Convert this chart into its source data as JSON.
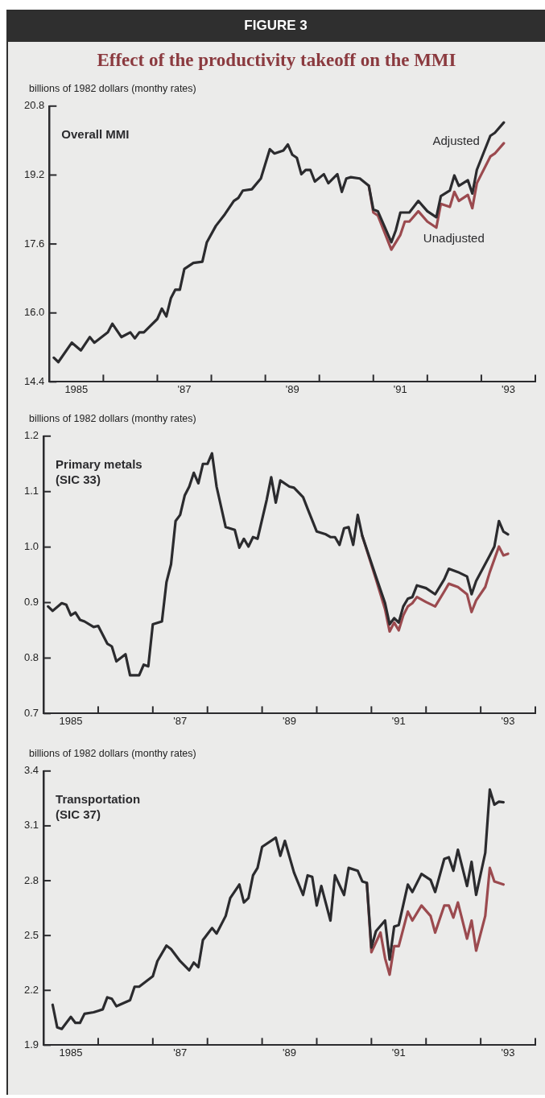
{
  "chart_data": [
    {
      "type": "line",
      "title": "FIGURE 3",
      "subtitle": "Effect of the productivity takeoff on the MMI",
      "ylabel": "billions of 1982 dollars (monthy rates)",
      "annotations": [
        "Overall MMI"
      ],
      "legend": false,
      "grid": false,
      "marker": "none",
      "line_style": "solid",
      "xlim": [
        "1985-01",
        "1994-01"
      ],
      "xticks": [
        {
          "value": "1985-07",
          "label": "1985"
        },
        {
          "value": "1986-01",
          "label": null
        },
        {
          "value": "1987-01",
          "label": null
        },
        {
          "value": "1987-07",
          "label": "'87"
        },
        {
          "value": "1988-01",
          "label": null
        },
        {
          "value": "1989-01",
          "label": null
        },
        {
          "value": "1989-07",
          "label": "'89"
        },
        {
          "value": "1990-01",
          "label": null
        },
        {
          "value": "1991-01",
          "label": null
        },
        {
          "value": "1991-07",
          "label": "'91"
        },
        {
          "value": "1992-01",
          "label": null
        },
        {
          "value": "1993-01",
          "label": null
        },
        {
          "value": "1993-07",
          "label": "'93"
        },
        {
          "value": "1994-01",
          "label": null
        }
      ],
      "ylim": [
        14.4,
        20.8
      ],
      "yticks": [
        14.4,
        {
          "value": 16,
          "label": "16.0"
        },
        17.6,
        19.2,
        20.8
      ],
      "series": [
        {
          "name": "Adjusted",
          "color": "#2b2b2e",
          "x": [
            "1985-02",
            "1985-03",
            "1985-06",
            "1985-08",
            "1985-10",
            "1985-11",
            "1986-02",
            "1986-03",
            "1986-05",
            "1986-07",
            "1986-08",
            "1986-09",
            "1986-10",
            "1987-01",
            "1987-02",
            "1987-03",
            "1987-04",
            "1987-05",
            "1987-06",
            "1987-07",
            "1987-09",
            "1987-11",
            "1987-12",
            "1988-02",
            "1988-04",
            "1988-06",
            "1988-07",
            "1988-08",
            "1988-10",
            "1988-12",
            "1989-02",
            "1989-03",
            "1989-05",
            "1989-06",
            "1989-07",
            "1989-08",
            "1989-09",
            "1989-10",
            "1989-11",
            "1989-12",
            "1990-02",
            "1990-03",
            "1990-05",
            "1990-06",
            "1990-07",
            "1990-08",
            "1990-10",
            "1990-12",
            "1991-01",
            "1991-02",
            "1991-05",
            "1991-06",
            "1991-07",
            "1991-09",
            "1991-11",
            "1992-01",
            "1992-03",
            "1992-04",
            "1992-06",
            "1992-07",
            "1992-08",
            "1992-10",
            "1992-11",
            "1992-12",
            "1993-03",
            "1993-04",
            "1993-06"
          ],
          "values": [
            14.96,
            14.86,
            15.31,
            15.13,
            15.44,
            15.31,
            15.55,
            15.75,
            15.44,
            15.55,
            15.41,
            15.55,
            15.55,
            15.86,
            16.1,
            15.92,
            16.34,
            16.54,
            16.54,
            17.02,
            17.16,
            17.19,
            17.64,
            18.02,
            18.29,
            18.6,
            18.67,
            18.84,
            18.87,
            19.12,
            19.8,
            19.7,
            19.77,
            19.91,
            19.67,
            19.6,
            19.22,
            19.32,
            19.32,
            19.05,
            19.22,
            19.01,
            19.22,
            18.81,
            19.12,
            19.15,
            19.12,
            18.95,
            18.4,
            18.36,
            17.64,
            17.92,
            18.33,
            18.33,
            18.6,
            18.36,
            18.22,
            18.71,
            18.84,
            19.19,
            18.95,
            19.08,
            18.77,
            19.32,
            20.11,
            20.18,
            20.42
          ]
        },
        {
          "name": "Unadjusted",
          "color": "#9b4a4f",
          "x": [
            "1990-12",
            "1991-01",
            "1991-02",
            "1991-05",
            "1991-07",
            "1991-08",
            "1991-09",
            "1991-11",
            "1992-01",
            "1992-03",
            "1992-04",
            "1992-06",
            "1992-07",
            "1992-08",
            "1992-10",
            "1992-11",
            "1992-12",
            "1993-03",
            "1993-04",
            "1993-06"
          ],
          "values": [
            18.95,
            18.33,
            18.26,
            17.47,
            17.81,
            18.12,
            18.12,
            18.36,
            18.12,
            17.98,
            18.53,
            18.46,
            18.81,
            18.6,
            18.74,
            18.43,
            19.01,
            19.63,
            19.7,
            19.94
          ]
        }
      ]
    },
    {
      "type": "line",
      "ylabel": "billions of 1982 dollars (monthy rates)",
      "annotations": [
        "Primary metals\n(SIC 33)"
      ],
      "legend": false,
      "grid": false,
      "marker": "none",
      "line_style": "solid",
      "xlim": [
        "1985-01",
        "1994-01"
      ],
      "xticks": [
        {
          "value": "1985-07",
          "label": "1985"
        },
        {
          "value": "1986-01",
          "label": null
        },
        {
          "value": "1987-01",
          "label": null
        },
        {
          "value": "1987-07",
          "label": "'87"
        },
        {
          "value": "1988-01",
          "label": null
        },
        {
          "value": "1989-01",
          "label": null
        },
        {
          "value": "1989-07",
          "label": "'89"
        },
        {
          "value": "1990-01",
          "label": null
        },
        {
          "value": "1991-01",
          "label": null
        },
        {
          "value": "1991-07",
          "label": "'91"
        },
        {
          "value": "1992-01",
          "label": null
        },
        {
          "value": "1993-01",
          "label": null
        },
        {
          "value": "1993-07",
          "label": "'93"
        },
        {
          "value": "1994-01",
          "label": null
        }
      ],
      "ylim": [
        0.7,
        1.2
      ],
      "yticks": [
        0.7,
        0.8,
        0.9,
        {
          "value": 1,
          "label": "1.0"
        },
        1.1,
        1.2
      ],
      "series": [
        {
          "color": "#2b2b2e",
          "x": [
            "1985-02",
            "1985-03",
            "1985-05",
            "1985-06",
            "1985-07",
            "1985-08",
            "1985-09",
            "1985-10",
            "1985-12",
            "1986-01",
            "1986-03",
            "1986-04",
            "1986-05",
            "1986-07",
            "1986-08",
            "1986-10",
            "1986-11",
            "1986-12",
            "1987-01",
            "1987-03",
            "1987-04",
            "1987-05",
            "1987-06",
            "1987-07",
            "1987-08",
            "1987-09",
            "1987-10",
            "1987-11",
            "1987-12",
            "1988-01",
            "1988-02",
            "1988-03",
            "1988-05",
            "1988-07",
            "1988-08",
            "1988-09",
            "1988-10",
            "1988-11",
            "1988-12",
            "1989-02",
            "1989-03",
            "1989-04",
            "1989-05",
            "1989-07",
            "1989-08",
            "1989-10",
            "1989-11",
            "1990-01",
            "1990-03",
            "1990-04",
            "1990-05",
            "1990-06",
            "1990-07",
            "1990-08",
            "1990-09",
            "1990-10",
            "1990-11",
            "1991-02",
            "1991-04",
            "1991-05",
            "1991-06",
            "1991-07",
            "1991-08",
            "1991-09",
            "1991-10",
            "1991-11",
            "1992-01",
            "1992-03",
            "1992-05",
            "1992-06",
            "1992-08",
            "1992-10",
            "1992-11",
            "1992-12",
            "1993-03",
            "1993-04",
            "1993-05",
            "1993-06",
            "1993-07"
          ],
          "values": [
            0.893,
            0.885,
            0.899,
            0.896,
            0.877,
            0.882,
            0.869,
            0.866,
            0.856,
            0.858,
            0.826,
            0.821,
            0.794,
            0.807,
            0.769,
            0.769,
            0.788,
            0.785,
            0.861,
            0.866,
            0.937,
            0.969,
            1.047,
            1.058,
            1.093,
            1.109,
            1.134,
            1.115,
            1.15,
            1.15,
            1.169,
            1.109,
            1.036,
            1.031,
            0.999,
            1.015,
            1.001,
            1.018,
            1.015,
            1.085,
            1.126,
            1.08,
            1.12,
            1.109,
            1.107,
            1.09,
            1.069,
            1.028,
            1.023,
            1.018,
            1.018,
            1.004,
            1.034,
            1.036,
            1.004,
            1.058,
            1.02,
            0.947,
            0.899,
            0.861,
            0.872,
            0.864,
            0.893,
            0.907,
            0.91,
            0.931,
            0.926,
            0.915,
            0.942,
            0.961,
            0.955,
            0.947,
            0.915,
            0.939,
            0.985,
            1.001,
            1.047,
            1.028,
            1.023
          ]
        },
        {
          "color": "#9b4a4f",
          "x": [
            "1990-11",
            "1991-02",
            "1991-04",
            "1991-05",
            "1991-06",
            "1991-07",
            "1991-08",
            "1991-09",
            "1991-10",
            "1991-11",
            "1992-01",
            "1992-03",
            "1992-05",
            "1992-06",
            "1992-08",
            "1992-10",
            "1992-11",
            "1992-12",
            "1993-02",
            "1993-03",
            "1993-05",
            "1993-06",
            "1993-07"
          ],
          "values": [
            1.02,
            0.942,
            0.888,
            0.848,
            0.864,
            0.85,
            0.877,
            0.893,
            0.899,
            0.91,
            0.901,
            0.893,
            0.92,
            0.934,
            0.928,
            0.915,
            0.883,
            0.904,
            0.928,
            0.955,
            1.001,
            0.985,
            0.988
          ]
        }
      ]
    },
    {
      "type": "line",
      "ylabel": "billions of 1982 dollars (monthy rates)",
      "annotations": [
        "Transportation\n(SIC 37)"
      ],
      "legend": false,
      "grid": false,
      "marker": "none",
      "line_style": "solid",
      "xlim": [
        "1985-01",
        "1994-01"
      ],
      "xticks": [
        {
          "value": "1985-07",
          "label": "1985"
        },
        {
          "value": "1986-01",
          "label": null
        },
        {
          "value": "1987-01",
          "label": null
        },
        {
          "value": "1987-07",
          "label": "'87"
        },
        {
          "value": "1988-01",
          "label": null
        },
        {
          "value": "1989-01",
          "label": null
        },
        {
          "value": "1989-07",
          "label": "'89"
        },
        {
          "value": "1990-01",
          "label": null
        },
        {
          "value": "1991-01",
          "label": null
        },
        {
          "value": "1991-07",
          "label": "'91"
        },
        {
          "value": "1992-01",
          "label": null
        },
        {
          "value": "1993-01",
          "label": null
        },
        {
          "value": "1993-07",
          "label": "'93"
        },
        {
          "value": "1994-01",
          "label": null
        }
      ],
      "ylim": [
        1.9,
        3.4
      ],
      "yticks": [
        1.9,
        2.2,
        2.5,
        2.8,
        3.1,
        3.4
      ],
      "series": [
        {
          "color": "#2b2b2e",
          "x": [
            "1985-03",
            "1985-04",
            "1985-05",
            "1985-07",
            "1985-08",
            "1985-09",
            "1985-10",
            "1985-12",
            "1986-01",
            "1986-02",
            "1986-03",
            "1986-04",
            "1986-05",
            "1986-08",
            "1986-09",
            "1986-10",
            "1987-01",
            "1987-02",
            "1987-04",
            "1987-05",
            "1987-07",
            "1987-08",
            "1987-09",
            "1987-10",
            "1987-11",
            "1987-12",
            "1988-02",
            "1988-03",
            "1988-05",
            "1988-06",
            "1988-08",
            "1988-09",
            "1988-10",
            "1988-11",
            "1988-12",
            "1989-01",
            "1989-04",
            "1989-05",
            "1989-06",
            "1989-08",
            "1989-10",
            "1989-11",
            "1989-12",
            "1990-01",
            "1990-02",
            "1990-04",
            "1990-05",
            "1990-07",
            "1990-08",
            "1990-10",
            "1990-11",
            "1990-12",
            "1991-01",
            "1991-02",
            "1991-04",
            "1991-05",
            "1991-06",
            "1991-07",
            "1991-09",
            "1991-10",
            "1991-12",
            "1992-02",
            "1992-03",
            "1992-05",
            "1992-06",
            "1992-07",
            "1992-08",
            "1992-10",
            "1992-11",
            "1992-12",
            "1993-02",
            "1993-03",
            "1993-04",
            "1993-05",
            "1993-06"
          ],
          "values": [
            2.121,
            1.998,
            1.989,
            2.055,
            2.022,
            2.022,
            2.072,
            2.08,
            2.088,
            2.096,
            2.162,
            2.154,
            2.113,
            2.146,
            2.22,
            2.22,
            2.277,
            2.36,
            2.445,
            2.426,
            2.36,
            2.335,
            2.31,
            2.352,
            2.327,
            2.475,
            2.541,
            2.511,
            2.607,
            2.705,
            2.779,
            2.681,
            2.705,
            2.829,
            2.87,
            2.985,
            3.035,
            2.936,
            3.018,
            2.845,
            2.722,
            2.829,
            2.821,
            2.664,
            2.771,
            2.582,
            2.829,
            2.722,
            2.87,
            2.854,
            2.796,
            2.788,
            2.434,
            2.524,
            2.582,
            2.368,
            2.549,
            2.557,
            2.779,
            2.738,
            2.837,
            2.804,
            2.738,
            2.919,
            2.928,
            2.854,
            2.969,
            2.771,
            2.903,
            2.722,
            2.952,
            3.298,
            3.216,
            3.232,
            3.229
          ]
        },
        {
          "color": "#9b4a4f",
          "x": [
            "1990-12",
            "1991-01",
            "1991-03",
            "1991-04",
            "1991-05",
            "1991-06",
            "1991-07",
            "1991-09",
            "1991-10",
            "1991-12",
            "1992-02",
            "1992-03",
            "1992-05",
            "1992-06",
            "1992-07",
            "1992-08",
            "1992-10",
            "1992-11",
            "1992-12",
            "1993-02",
            "1993-03",
            "1993-04",
            "1993-06"
          ],
          "values": [
            2.788,
            2.409,
            2.516,
            2.376,
            2.286,
            2.442,
            2.442,
            2.631,
            2.582,
            2.664,
            2.607,
            2.516,
            2.664,
            2.664,
            2.598,
            2.681,
            2.483,
            2.582,
            2.417,
            2.607,
            2.87,
            2.796,
            2.779
          ]
        }
      ]
    }
  ]
}
